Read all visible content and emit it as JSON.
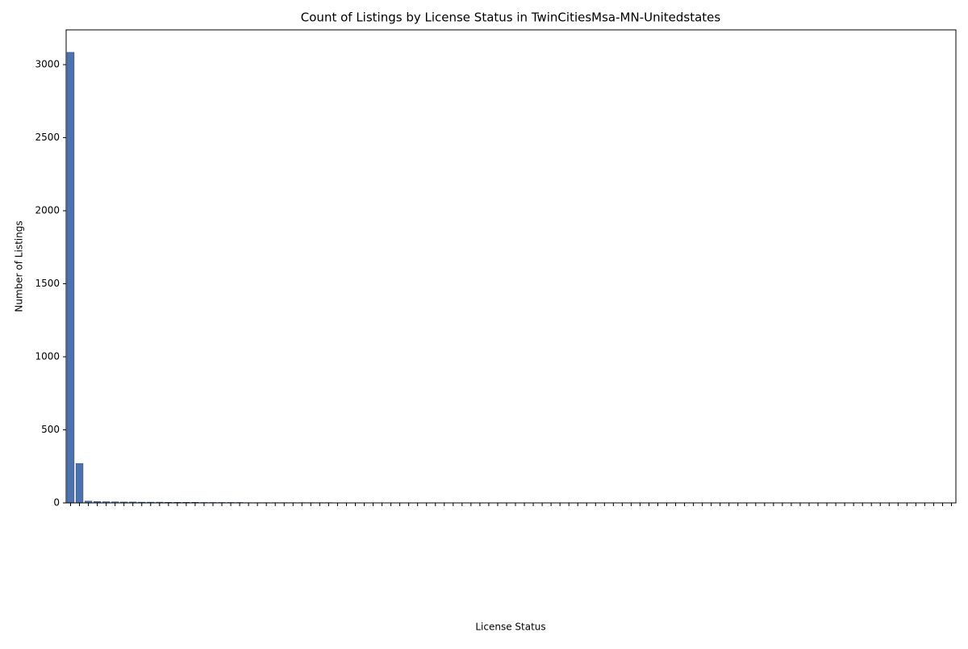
{
  "chart_data": {
    "type": "bar",
    "title": "Count of Listings by License Status in TwinCitiesMsa-MN-Unitedstates",
    "x_label": "License Status",
    "y_label": "Number of Listings",
    "color": "#4c72b0",
    "ylim": [
      0,
      3238
    ],
    "yticks": [
      0,
      500,
      1000,
      1500,
      2000,
      2500,
      3000
    ],
    "categories": [
      null,
      null,
      null,
      null,
      null,
      null,
      null,
      null,
      null,
      null,
      null,
      null,
      null,
      null,
      null,
      null,
      null,
      null,
      null,
      null,
      null,
      null,
      null,
      null,
      null,
      null,
      null,
      null,
      null,
      null,
      null,
      null,
      null,
      null,
      null,
      null,
      null,
      null,
      null,
      null,
      null,
      null,
      null,
      null,
      null,
      null,
      null,
      null,
      null,
      null,
      null,
      null,
      null,
      null,
      null,
      null,
      null,
      null,
      null,
      null,
      null,
      null,
      null,
      null,
      null,
      null,
      null,
      null,
      null,
      null,
      null,
      null,
      null,
      null,
      null,
      null,
      null,
      null,
      null,
      null,
      null,
      null,
      null,
      null,
      null,
      null,
      null,
      null,
      null,
      null,
      null,
      null,
      null,
      null,
      null,
      null,
      null,
      null,
      null,
      null
    ],
    "values": [
      3084,
      270,
      12,
      9,
      8,
      7,
      6,
      6,
      5,
      5,
      5,
      4,
      4,
      4,
      4,
      3,
      3,
      3,
      3,
      3,
      2,
      2,
      2,
      2,
      2,
      2,
      2,
      2,
      2,
      2,
      1,
      1,
      1,
      1,
      1,
      1,
      1,
      1,
      1,
      1,
      1,
      1,
      1,
      1,
      1,
      1,
      1,
      1,
      1,
      1,
      1,
      1,
      1,
      1,
      1,
      1,
      1,
      1,
      1,
      1,
      1,
      1,
      1,
      1,
      1,
      1,
      1,
      1,
      1,
      1,
      1,
      1,
      1,
      1,
      1,
      1,
      1,
      1,
      1,
      1,
      1,
      1,
      1,
      1,
      1,
      1,
      1,
      1,
      1,
      1,
      1,
      1,
      1,
      1,
      1,
      1,
      1,
      1,
      1,
      1
    ]
  }
}
